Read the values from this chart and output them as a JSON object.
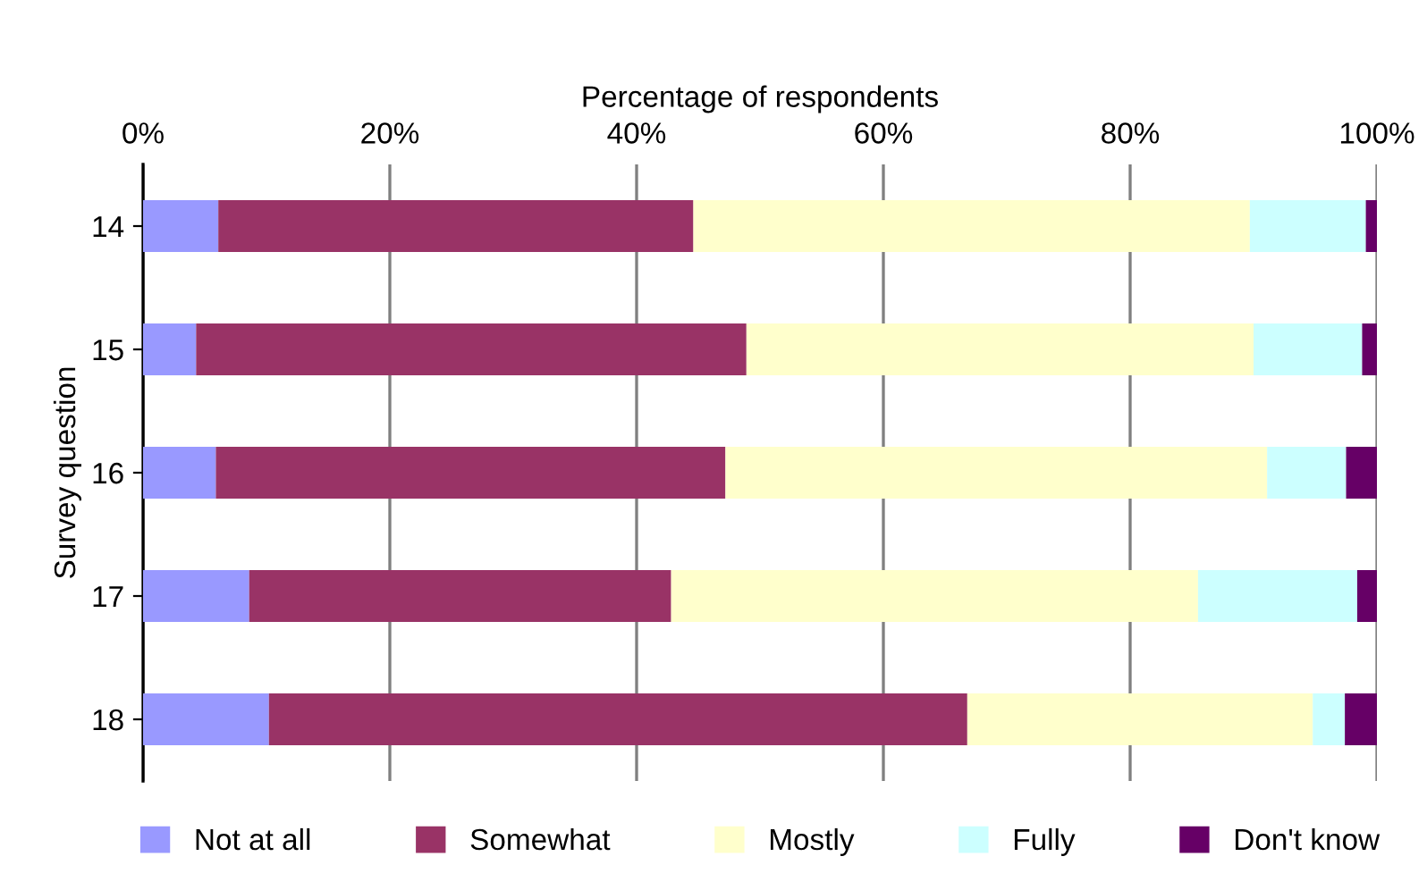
{
  "chart_data": {
    "type": "bar",
    "orientation": "horizontal",
    "stacked": true,
    "xlabel": "Percentage of respondents",
    "ylabel": "Survey question",
    "categories": [
      "14",
      "15",
      "16",
      "17",
      "18"
    ],
    "series": [
      {
        "name": "Not at all",
        "color": "#9999ff",
        "values": [
          6.1,
          4.3,
          5.9,
          8.6,
          10.2
        ]
      },
      {
        "name": "Somewhat",
        "color": "#993366",
        "values": [
          38.5,
          44.6,
          41.3,
          34.2,
          56.6
        ]
      },
      {
        "name": "Mostly",
        "color": "#ffffcc",
        "values": [
          45.1,
          41.1,
          43.9,
          42.7,
          28.0
        ]
      },
      {
        "name": "Fully",
        "color": "#ccffff",
        "values": [
          9.4,
          8.8,
          6.4,
          12.9,
          2.6
        ]
      },
      {
        "name": "Don't know",
        "color": "#660066",
        "values": [
          0.9,
          1.2,
          2.5,
          1.6,
          2.6
        ]
      }
    ],
    "xlim": [
      0,
      100
    ],
    "xticks": [
      {
        "value": 0,
        "label": "0%"
      },
      {
        "value": 20,
        "label": "20%"
      },
      {
        "value": 40,
        "label": "40%"
      },
      {
        "value": 60,
        "label": "60%"
      },
      {
        "value": 80,
        "label": "80%"
      },
      {
        "value": 100,
        "label": "100%"
      }
    ],
    "grid": "x",
    "legend": "bottom"
  }
}
